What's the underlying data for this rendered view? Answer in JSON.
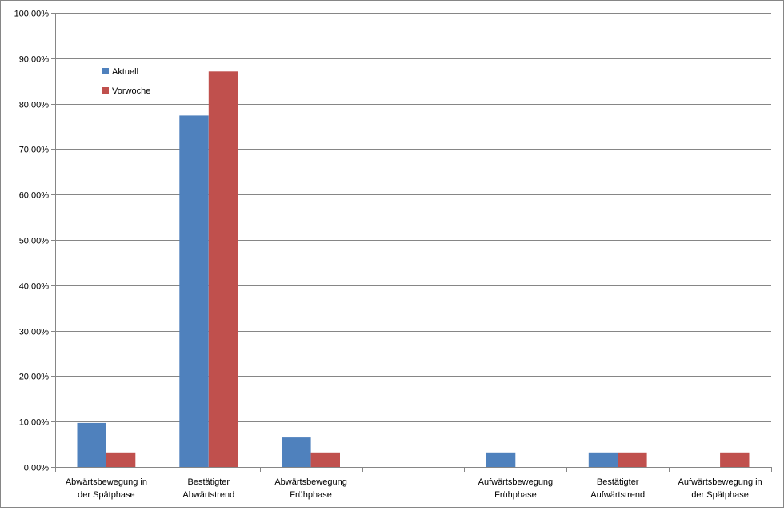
{
  "chart_data": {
    "type": "bar",
    "categories": [
      [
        "Abwärtsbewegung in",
        "der Spätphase"
      ],
      [
        "Bestätigter",
        "Abwärtstrend"
      ],
      [
        "Abwärtsbewegung",
        "Frühphase"
      ],
      [
        "",
        ""
      ],
      [
        "Aufwärtsbewegung",
        "Frühphase"
      ],
      [
        "Bestätigter",
        "Aufwärtstrend"
      ],
      [
        "Aufwärtsbewegung in",
        "der Spätphase"
      ]
    ],
    "series": [
      {
        "name": "Aktuell",
        "color": "#4F81BD",
        "values": [
          9.7,
          77.4,
          6.5,
          0,
          3.2,
          3.2,
          0
        ]
      },
      {
        "name": "Vorwoche",
        "color": "#C0504D",
        "values": [
          3.2,
          87.1,
          3.2,
          0,
          0,
          3.2,
          3.2
        ]
      }
    ],
    "ylim": [
      0,
      100
    ],
    "yticks": [
      "0,00%",
      "10,00%",
      "20,00%",
      "30,00%",
      "40,00%",
      "50,00%",
      "60,00%",
      "70,00%",
      "80,00%",
      "90,00%",
      "100,00%"
    ],
    "grid": true,
    "legend_position": "top-left inside plot",
    "title": "",
    "xlabel": "",
    "ylabel": ""
  }
}
